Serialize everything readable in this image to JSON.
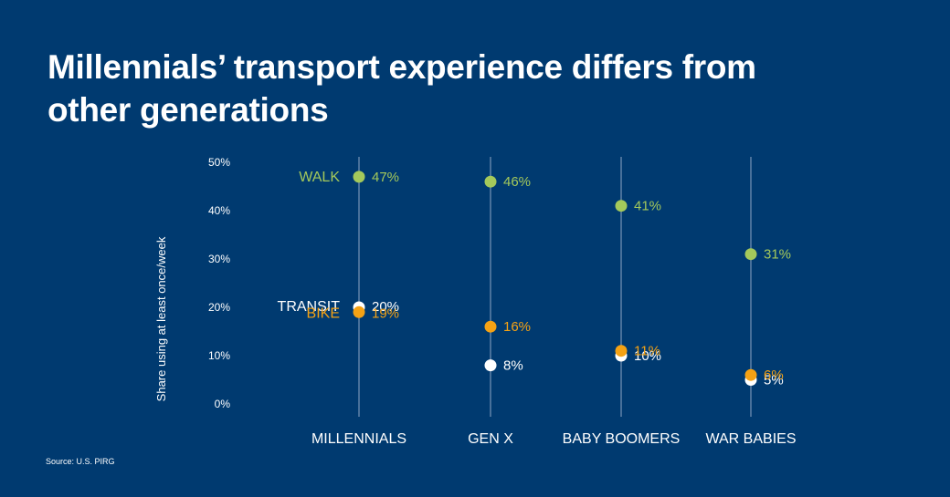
{
  "title": "Millennials’ transport experience differs from other generations",
  "source": "Source: U.S. PIRG",
  "colors": {
    "background": "#003a70",
    "walk": "#a4c95b",
    "transit": "#ffffff",
    "bike": "#f5a214",
    "axis_text": "#ffffff",
    "guide_line": "#8fa6c4"
  },
  "chart_data": {
    "type": "scatter",
    "title": "Millennials’ transport experience differs from other generations",
    "ylabel": "Share using at least once/week",
    "xlabel": "",
    "ylim": [
      0,
      50
    ],
    "grid": false,
    "categories": [
      "MILLENNIALS",
      "GEN X",
      "BABY BOOMERS",
      "WAR BABIES"
    ],
    "y_ticks": [
      {
        "value": 0,
        "label": "0%"
      },
      {
        "value": 10,
        "label": "10%"
      },
      {
        "value": 20,
        "label": "20%"
      },
      {
        "value": 30,
        "label": "30%"
      },
      {
        "value": 40,
        "label": "40%"
      },
      {
        "value": 50,
        "label": "50%"
      }
    ],
    "series": [
      {
        "name": "WALK",
        "color": "#a4c95b",
        "values": [
          47,
          46,
          41,
          31
        ],
        "labels": [
          "47%",
          "46%",
          "41%",
          "31%"
        ]
      },
      {
        "name": "TRANSIT",
        "color": "#ffffff",
        "values": [
          20,
          8,
          10,
          5
        ],
        "labels": [
          "20%",
          "8%",
          "10%",
          "5%"
        ]
      },
      {
        "name": "BIKE",
        "color": "#f5a214",
        "values": [
          19,
          16,
          11,
          6
        ],
        "labels": [
          "19%",
          "16%",
          "11%",
          "6%"
        ]
      }
    ]
  }
}
